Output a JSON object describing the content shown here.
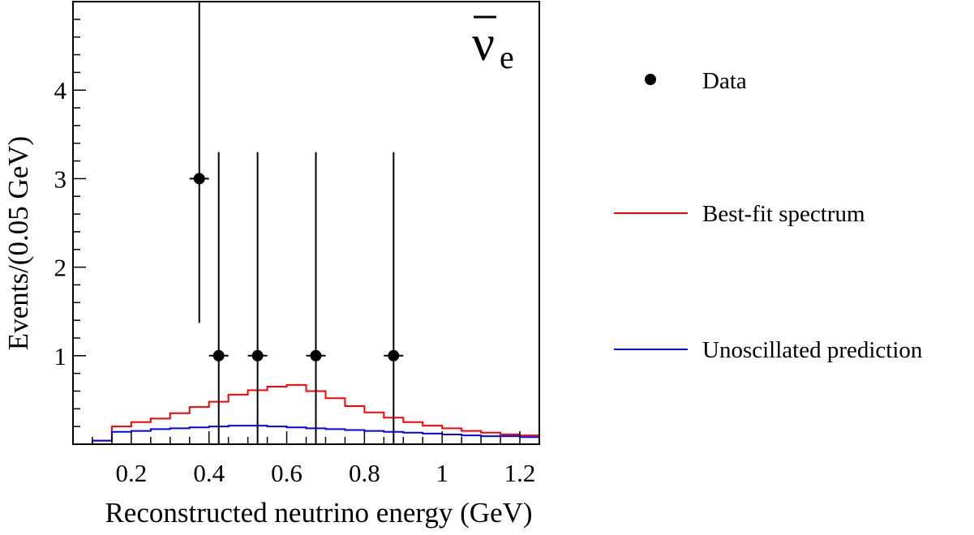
{
  "chart_data": {
    "type": "scatter",
    "title": "",
    "corner_label": {
      "main": "ν",
      "sub": "e"
    },
    "xlabel": "Reconstructed neutrino energy (GeV)",
    "ylabel": "Events/(0.05 GeV)",
    "xlim": [
      0.05,
      1.25
    ],
    "ylim": [
      0,
      5.0
    ],
    "x_ticks": [
      0.2,
      0.4,
      0.6,
      0.8,
      1.0,
      1.2
    ],
    "x_tick_labels": [
      "0.2",
      "0.4",
      "0.6",
      "0.8",
      "1",
      "1.2"
    ],
    "y_ticks": [
      1,
      2,
      3,
      4
    ],
    "y_tick_labels": [
      "1",
      "2",
      "3",
      "4"
    ],
    "grid": false,
    "legend_position": "right, outside plot",
    "series": [
      {
        "name": "Data",
        "kind": "points",
        "color": "#000000",
        "x": [
          0.375,
          0.425,
          0.525,
          0.675,
          0.875
        ],
        "y": [
          3,
          1,
          1,
          1,
          1
        ],
        "x_half_width": [
          0.025,
          0.025,
          0.025,
          0.025,
          0.025
        ],
        "y_err_low": [
          1.63,
          1.0,
          1.0,
          1.0,
          1.0
        ],
        "y_err_high": [
          2.0,
          2.3,
          2.3,
          2.3,
          2.3
        ]
      },
      {
        "name": "Best-fit spectrum",
        "kind": "step",
        "color": "#ff0000",
        "bin_edges": [
          0.1,
          0.15,
          0.2,
          0.25,
          0.3,
          0.35,
          0.4,
          0.45,
          0.5,
          0.55,
          0.6,
          0.65,
          0.7,
          0.75,
          0.8,
          0.85,
          0.9,
          0.95,
          1.0,
          1.05,
          1.1,
          1.15,
          1.2,
          1.25
        ],
        "values": [
          0.04,
          0.2,
          0.25,
          0.29,
          0.35,
          0.42,
          0.48,
          0.56,
          0.61,
          0.65,
          0.67,
          0.6,
          0.52,
          0.43,
          0.36,
          0.3,
          0.25,
          0.21,
          0.18,
          0.15,
          0.13,
          0.11,
          0.1
        ]
      },
      {
        "name": "Unoscillated prediction",
        "kind": "step",
        "color": "#0000ff",
        "bin_edges": [
          0.1,
          0.15,
          0.2,
          0.25,
          0.3,
          0.35,
          0.4,
          0.45,
          0.5,
          0.55,
          0.6,
          0.65,
          0.7,
          0.75,
          0.8,
          0.85,
          0.9,
          0.95,
          1.0,
          1.05,
          1.1,
          1.15,
          1.2,
          1.25
        ],
        "values": [
          0.04,
          0.14,
          0.15,
          0.17,
          0.18,
          0.19,
          0.2,
          0.21,
          0.21,
          0.2,
          0.19,
          0.18,
          0.17,
          0.16,
          0.15,
          0.14,
          0.13,
          0.12,
          0.11,
          0.1,
          0.09,
          0.09,
          0.08
        ]
      }
    ]
  }
}
